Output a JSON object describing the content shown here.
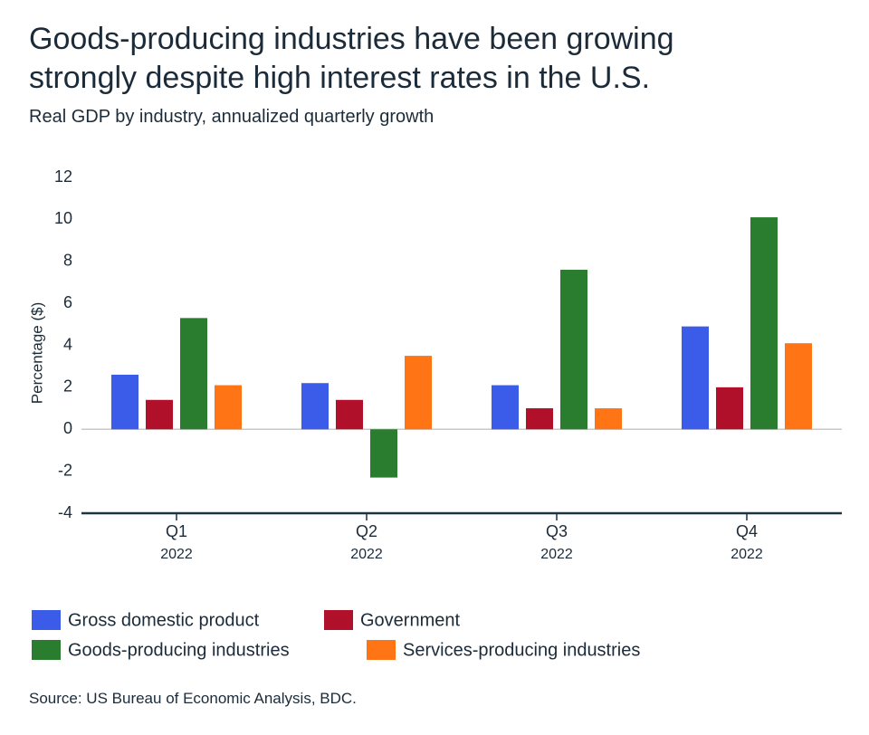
{
  "chart_data": {
    "type": "bar",
    "title": "Goods-producing industries have been growing strongly despite high interest rates in the U.S.",
    "subtitle": "Real GDP by industry, annualized quarterly growth",
    "y_label": "Percentage ($)",
    "source": "Source: US Bureau of Economic Analysis, BDC.",
    "categories": [
      "Q1",
      "Q2",
      "Q3",
      "Q4"
    ],
    "category_years": [
      "2022",
      "2022",
      "2022",
      "2022"
    ],
    "series": [
      {
        "name": "Gross domestic product",
        "color": "#3a5ce9",
        "values": [
          2.6,
          2.2,
          2.1,
          4.9
        ]
      },
      {
        "name": "Government",
        "color": "#b0102a",
        "values": [
          1.4,
          1.4,
          1.0,
          2.0
        ]
      },
      {
        "name": "Goods-producing industries",
        "color": "#2a7d2e",
        "values": [
          5.3,
          -2.3,
          7.6,
          10.1
        ]
      },
      {
        "name": "Services-producing industries",
        "color": "#ff7414",
        "values": [
          2.1,
          3.5,
          1.0,
          4.1
        ]
      }
    ],
    "ylim": [
      -4,
      12
    ],
    "yticks": [
      -4,
      -2,
      0,
      2,
      4,
      6,
      8,
      10,
      12
    ]
  }
}
